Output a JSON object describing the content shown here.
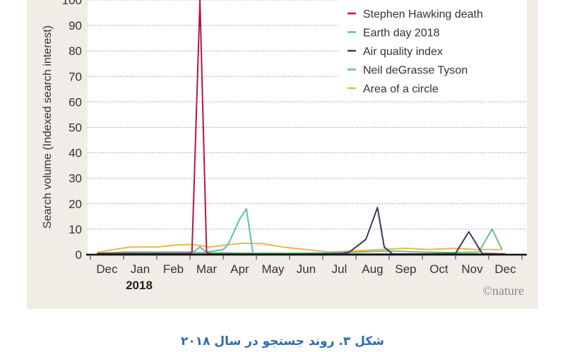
{
  "chart_data": {
    "type": "line",
    "title": "",
    "xlabel": "",
    "ylabel": "Search volume (Indexed search interest)",
    "ylim": [
      0,
      100
    ],
    "yticks": [
      0,
      10,
      20,
      30,
      40,
      50,
      60,
      70,
      80,
      90,
      100
    ],
    "x_unit": "months since start of Dec 2017",
    "xlim": [
      0,
      13
    ],
    "x_tick_labels": [
      "Dec",
      "Jan",
      "Feb",
      "Mar",
      "Apr",
      "May",
      "Jun",
      "Jul",
      "Aug",
      "Sep",
      "Oct",
      "Nov",
      "Dec"
    ],
    "year_label": "2018",
    "grid": "horizontal dotted",
    "legend_position": "top-right",
    "series": [
      {
        "name": "Stephen Hawking death",
        "color": "#b5173f",
        "x": [
          0.2,
          1,
          2,
          3.0,
          3.06,
          3.3,
          3.5,
          3.6,
          4,
          6,
          8,
          10,
          12,
          12.5
        ],
        "y": [
          0.5,
          0.5,
          0.5,
          0.5,
          1,
          100,
          1,
          0.3,
          0.2,
          0.2,
          0.2,
          0.2,
          0.2,
          0.2
        ]
      },
      {
        "name": "Earth day 2018",
        "color": "#5cc1ac",
        "x": [
          0.2,
          1,
          2,
          2.8,
          3.1,
          3.3,
          3.5,
          4.0,
          4.15,
          4.5,
          4.7,
          4.9,
          5.1,
          7,
          9,
          11,
          12.5
        ],
        "y": [
          0.5,
          1,
          1,
          1,
          1,
          3,
          1,
          2,
          4,
          14,
          18,
          0.3,
          0.2,
          0.2,
          0.2,
          0.2,
          0.2
        ]
      },
      {
        "name": "Air quality index",
        "color": "#3a3a5c",
        "x": [
          0.2,
          2,
          4,
          6,
          7.6,
          7.8,
          8.3,
          8.65,
          8.85,
          9.1,
          10,
          11.0,
          11.4,
          11.8,
          12.5
        ],
        "y": [
          0.2,
          0.2,
          0.2,
          0.2,
          0.5,
          1,
          6,
          18.5,
          3,
          0.3,
          0.3,
          0.5,
          9,
          0.5,
          0.3
        ]
      },
      {
        "name": "Neil deGrasse Tyson",
        "color": "#6cbf8c",
        "x": [
          0.2,
          1,
          3,
          5,
          7,
          8,
          9,
          10,
          11,
          11.7,
          12.1,
          12.4
        ],
        "y": [
          0.5,
          0.8,
          0.8,
          0.6,
          0.6,
          1,
          1.5,
          1,
          0.8,
          1,
          10,
          2
        ]
      },
      {
        "name": "Area of a circle",
        "color": "#e8b84a",
        "x": [
          0.2,
          0.7,
          1.2,
          2.0,
          2.6,
          3.1,
          3.6,
          4.2,
          4.6,
          5.2,
          5.8,
          6.5,
          7.2,
          8.0,
          8.7,
          9.5,
          10.2,
          11.0,
          11.6,
          12.4
        ],
        "y": [
          0.8,
          2,
          3,
          3,
          3.8,
          4,
          3,
          4,
          4.5,
          4.3,
          3,
          2,
          1,
          1.5,
          2,
          2.5,
          2,
          2.5,
          2,
          2
        ]
      }
    ],
    "credit": "©nature"
  },
  "caption": "شکل ۳. روند جستجو در سال ۲۰۱۸"
}
